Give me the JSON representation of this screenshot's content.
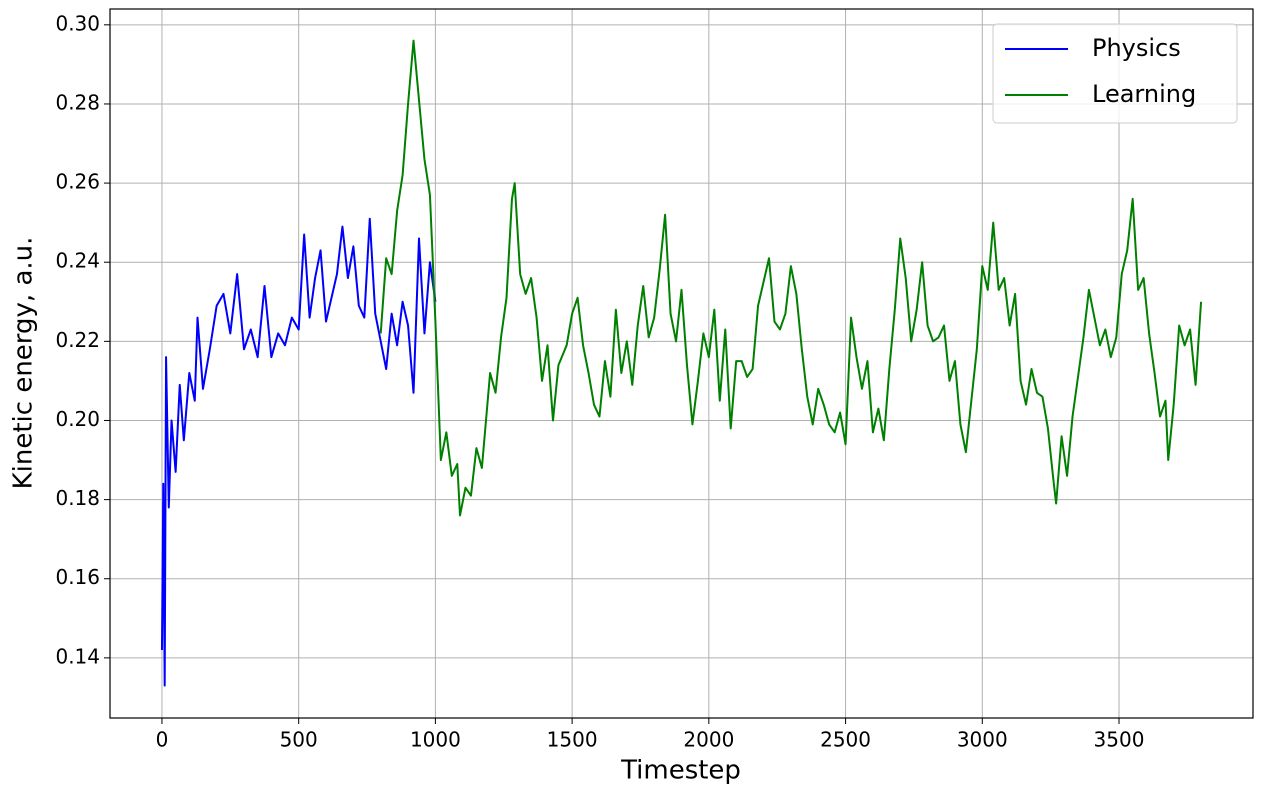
{
  "chart_data": {
    "type": "line",
    "x_label": "Timestep",
    "y_label": "Kinetic energy, a.u.",
    "xlim": [
      -190,
      3990
    ],
    "ylim": [
      0.1248,
      0.304
    ],
    "xticks": [
      0,
      500,
      1000,
      1500,
      2000,
      2500,
      3000,
      3500
    ],
    "yticks": [
      0.14,
      0.16,
      0.18,
      {
        "value": 0.2,
        "label": "0.20"
      },
      0.22,
      0.24,
      0.26,
      0.28,
      {
        "value": 0.3,
        "label": "0.30"
      }
    ],
    "grid": true,
    "legend": "upper right",
    "series": [
      {
        "name": "Physics",
        "color": "#0000ff",
        "x": [
          0,
          5,
          10,
          15,
          25,
          35,
          50,
          65,
          80,
          100,
          120,
          130,
          150,
          175,
          200,
          225,
          250,
          275,
          300,
          325,
          350,
          375,
          400,
          425,
          450,
          475,
          500,
          520,
          540,
          560,
          580,
          600,
          620,
          640,
          660,
          680,
          700,
          720,
          740,
          760,
          780,
          800,
          820,
          840,
          860,
          880,
          900,
          920,
          940,
          960,
          980,
          1000
        ],
        "values": [
          0.142,
          0.184,
          0.133,
          0.216,
          0.178,
          0.2,
          0.187,
          0.209,
          0.195,
          0.212,
          0.205,
          0.226,
          0.208,
          0.218,
          0.229,
          0.232,
          0.222,
          0.237,
          0.218,
          0.223,
          0.216,
          0.234,
          0.216,
          0.222,
          0.219,
          0.226,
          0.223,
          0.247,
          0.226,
          0.236,
          0.243,
          0.225,
          0.231,
          0.237,
          0.249,
          0.236,
          0.244,
          0.229,
          0.226,
          0.251,
          0.227,
          0.22,
          0.213,
          0.227,
          0.219,
          0.23,
          0.224,
          0.207,
          0.246,
          0.222,
          0.24,
          0.23
        ]
      },
      {
        "name": "Learning",
        "color": "#008000",
        "x": [
          800,
          820,
          840,
          860,
          880,
          900,
          920,
          940,
          960,
          980,
          1000,
          1020,
          1040,
          1060,
          1080,
          1090,
          1110,
          1130,
          1150,
          1170,
          1200,
          1220,
          1240,
          1260,
          1280,
          1290,
          1310,
          1330,
          1350,
          1370,
          1390,
          1410,
          1430,
          1450,
          1480,
          1500,
          1520,
          1540,
          1560,
          1580,
          1600,
          1620,
          1640,
          1660,
          1680,
          1700,
          1720,
          1740,
          1760,
          1780,
          1800,
          1820,
          1840,
          1860,
          1880,
          1900,
          1920,
          1940,
          1960,
          1980,
          2000,
          2020,
          2040,
          2060,
          2080,
          2100,
          2120,
          2140,
          2160,
          2180,
          2200,
          2220,
          2240,
          2260,
          2280,
          2300,
          2320,
          2340,
          2360,
          2380,
          2400,
          2420,
          2440,
          2460,
          2480,
          2500,
          2520,
          2540,
          2560,
          2580,
          2600,
          2620,
          2640,
          2660,
          2680,
          2700,
          2720,
          2740,
          2760,
          2780,
          2800,
          2820,
          2840,
          2860,
          2880,
          2900,
          2920,
          2940,
          2960,
          2980,
          3000,
          3020,
          3040,
          3060,
          3080,
          3100,
          3120,
          3140,
          3160,
          3180,
          3200,
          3220,
          3240,
          3260,
          3270,
          3290,
          3310,
          3330,
          3350,
          3370,
          3390,
          3410,
          3430,
          3450,
          3470,
          3490,
          3510,
          3530,
          3550,
          3570,
          3590,
          3610,
          3630,
          3650,
          3670,
          3680,
          3700,
          3720,
          3740,
          3760,
          3780,
          3800
        ],
        "values": [
          0.222,
          0.241,
          0.237,
          0.253,
          0.262,
          0.28,
          0.296,
          0.281,
          0.266,
          0.257,
          0.225,
          0.19,
          0.197,
          0.186,
          0.189,
          0.176,
          0.183,
          0.181,
          0.193,
          0.188,
          0.212,
          0.207,
          0.221,
          0.231,
          0.256,
          0.26,
          0.237,
          0.232,
          0.236,
          0.226,
          0.21,
          0.219,
          0.2,
          0.214,
          0.219,
          0.227,
          0.231,
          0.219,
          0.212,
          0.204,
          0.201,
          0.215,
          0.206,
          0.228,
          0.212,
          0.22,
          0.209,
          0.224,
          0.234,
          0.221,
          0.226,
          0.238,
          0.252,
          0.227,
          0.22,
          0.233,
          0.214,
          0.199,
          0.21,
          0.222,
          0.216,
          0.228,
          0.205,
          0.223,
          0.198,
          0.215,
          0.215,
          0.211,
          0.213,
          0.229,
          0.235,
          0.241,
          0.225,
          0.223,
          0.227,
          0.239,
          0.232,
          0.218,
          0.206,
          0.199,
          0.208,
          0.204,
          0.199,
          0.197,
          0.202,
          0.194,
          0.226,
          0.216,
          0.208,
          0.215,
          0.197,
          0.203,
          0.195,
          0.213,
          0.228,
          0.246,
          0.236,
          0.22,
          0.228,
          0.24,
          0.224,
          0.22,
          0.221,
          0.224,
          0.21,
          0.215,
          0.199,
          0.192,
          0.205,
          0.218,
          0.239,
          0.233,
          0.25,
          0.233,
          0.236,
          0.224,
          0.232,
          0.21,
          0.204,
          0.213,
          0.207,
          0.206,
          0.198,
          0.185,
          0.179,
          0.196,
          0.186,
          0.201,
          0.211,
          0.221,
          0.233,
          0.226,
          0.219,
          0.223,
          0.216,
          0.221,
          0.237,
          0.243,
          0.256,
          0.233,
          0.236,
          0.222,
          0.212,
          0.201,
          0.205,
          0.19,
          0.204,
          0.224,
          0.219,
          0.223,
          0.209,
          0.23
        ]
      }
    ]
  }
}
